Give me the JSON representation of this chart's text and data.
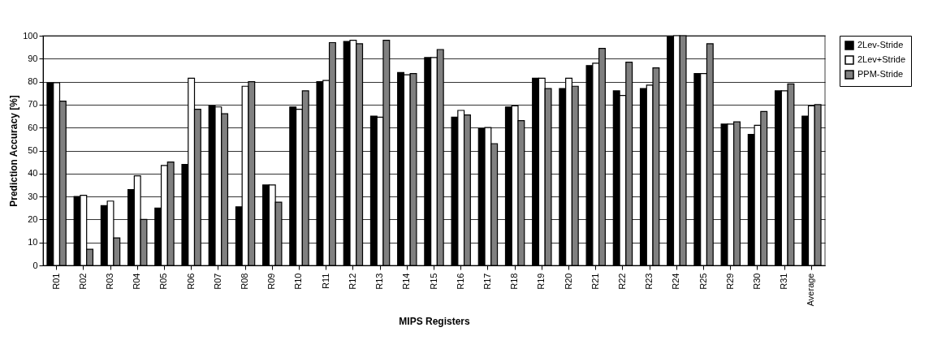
{
  "chart_data": {
    "type": "bar",
    "xlabel": "MIPS Registers",
    "ylabel": "Prediction Accuracy [%]",
    "categories": [
      "R01",
      "R02",
      "R03",
      "R04",
      "R05",
      "R06",
      "R07",
      "R08",
      "R09",
      "R10",
      "R11",
      "R12",
      "R13",
      "R14",
      "R15",
      "R16",
      "R17",
      "R18",
      "R19",
      "R20",
      "R21",
      "R22",
      "R23",
      "R24",
      "R25",
      "R29",
      "R30",
      "R31",
      "Average"
    ],
    "series": [
      {
        "name": "2Lev-Stride",
        "color": "#000000",
        "values": [
          79.5,
          30,
          26,
          33,
          25,
          44,
          69.5,
          25.5,
          35,
          69,
          80,
          97.5,
          65,
          84,
          90.5,
          64.5,
          59.5,
          69,
          81.5,
          77,
          87,
          76,
          77,
          99.5,
          83.5,
          61.5,
          57,
          76,
          65
        ]
      },
      {
        "name": "2Lev+Stride",
        "color": "#ffffff",
        "values": [
          79.5,
          30.5,
          28,
          39,
          43.5,
          81.5,
          69,
          78,
          35,
          68,
          80.5,
          98,
          64.5,
          83,
          90.5,
          67.5,
          60,
          69.5,
          81.5,
          81.5,
          88,
          74,
          78.5,
          100,
          83.5,
          61.5,
          61,
          76,
          69.5
        ]
      },
      {
        "name": "PPM-Stride",
        "color": "#808080",
        "values": [
          71.5,
          7,
          12,
          20,
          45,
          68,
          66,
          80,
          27.5,
          76,
          97,
          96.5,
          98,
          83.5,
          94,
          65.5,
          53,
          63,
          77,
          78,
          94.5,
          88.5,
          86,
          100,
          96.5,
          62.5,
          67,
          79,
          70
        ]
      }
    ],
    "ylim": [
      0,
      100
    ],
    "yticks": [
      0,
      10,
      20,
      30,
      40,
      50,
      60,
      70,
      80,
      90,
      100
    ],
    "grid": "y",
    "legend": "right"
  }
}
